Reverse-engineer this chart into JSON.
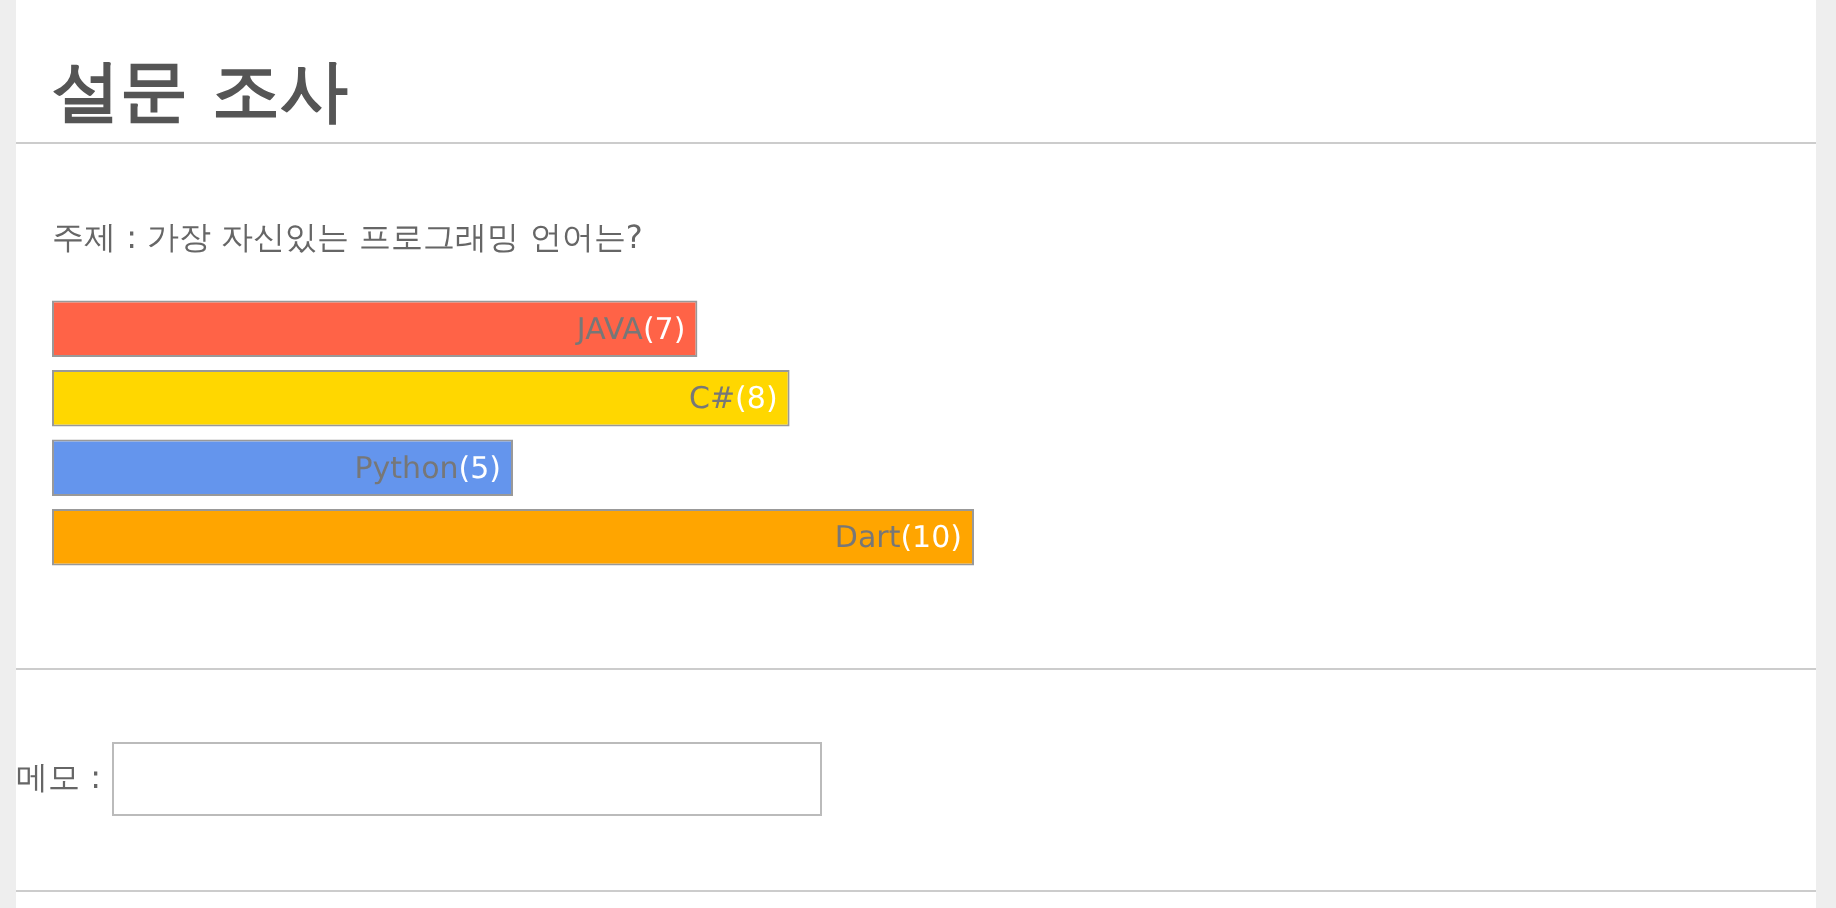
{
  "chart_data": {
    "type": "bar",
    "orientation": "horizontal",
    "title": "설문 조사",
    "subtitle": "주제 : 가장 자신있는 프로그래밍 언어는?",
    "categories": [
      "JAVA",
      "C#",
      "Python",
      "Dart"
    ],
    "values": [
      7,
      8,
      5,
      10
    ],
    "colors": [
      "#ff6347",
      "#ffd700",
      "#6495ed",
      "#ffa500"
    ],
    "value_labels": [
      "(7)",
      "(8)",
      "(5)",
      "(10)"
    ],
    "xlim": [
      0,
      10
    ],
    "tick_labels": false,
    "annotations": [
      "메모 :"
    ]
  }
}
